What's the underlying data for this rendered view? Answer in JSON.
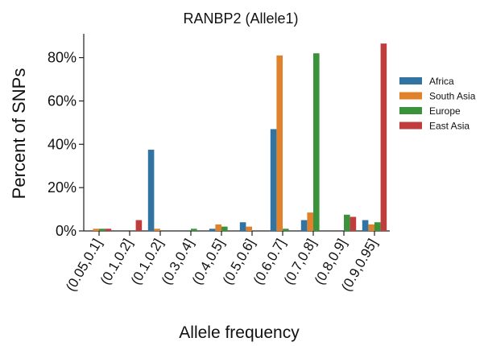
{
  "chart_data": {
    "type": "bar",
    "title": "RANBP2 (Allele1)",
    "xlabel": "Allele frequency",
    "ylabel": "Percent of SNPs",
    "categories": [
      "(0.05,0.1]",
      "(0.1,0.2]",
      "(0.1,0.2]",
      "(0.3,0.4]",
      "(0.4,0.5]",
      "(0.5,0.6]",
      "(0.6,0.7]",
      "(0.7,0.8]",
      "(0.8,0.9]",
      "(0.9,0.95]"
    ],
    "ylim": [
      0,
      91
    ],
    "yticks": [
      0,
      20,
      40,
      60,
      80
    ],
    "ytick_labels": [
      "0%",
      "20%",
      "40%",
      "60%",
      "80%"
    ],
    "grid": false,
    "legend_position": "right",
    "series": [
      {
        "name": "Africa",
        "color": "#3274a1",
        "values": [
          0,
          0,
          37.5,
          0,
          1,
          4,
          47,
          5,
          0,
          5
        ]
      },
      {
        "name": "South Asia",
        "color": "#e1812c",
        "values": [
          1,
          0,
          1,
          0,
          3,
          2,
          81,
          8.5,
          0,
          3
        ]
      },
      {
        "name": "Europe",
        "color": "#3a923a",
        "values": [
          1,
          0,
          0,
          1,
          2,
          0,
          1,
          82,
          7.5,
          4
        ]
      },
      {
        "name": "East Asia",
        "color": "#c03d3e",
        "values": [
          1,
          5,
          0,
          0,
          0,
          0,
          0,
          0,
          6.5,
          86.5
        ]
      }
    ]
  }
}
